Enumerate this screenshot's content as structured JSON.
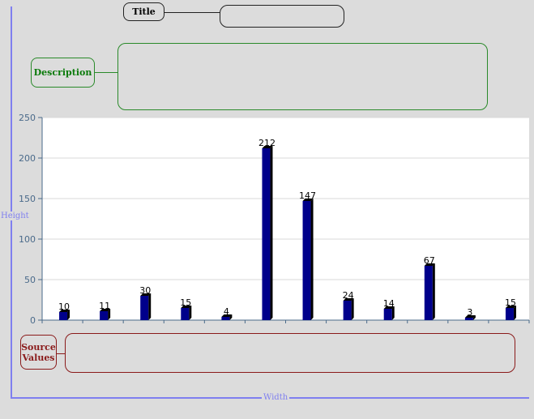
{
  "labels": {
    "title": "Title",
    "description": "Description",
    "source_line1": "Source",
    "source_line2": "Values",
    "height": "Height",
    "width": "Width"
  },
  "fields": {
    "title_value": "",
    "description_value": "",
    "source_value": ""
  },
  "colors": {
    "bar_front": "#00008b",
    "bar_side": "#000000",
    "axis": "#4a6a8a",
    "grid": "#d8d8d8",
    "plot_bg": "#ffffff",
    "guide": "#7f7fef"
  },
  "chart_data": {
    "type": "bar",
    "categories": [
      "",
      "",
      "",
      "",
      "",
      "",
      "",
      "",
      "",
      "",
      "",
      ""
    ],
    "values": [
      10,
      11,
      30,
      15,
      4,
      212,
      147,
      24,
      14,
      67,
      3,
      15
    ],
    "ylim": [
      0,
      250
    ],
    "yticks": [
      0,
      50,
      100,
      150,
      200,
      250
    ],
    "grid": true,
    "data_labels": true
  }
}
